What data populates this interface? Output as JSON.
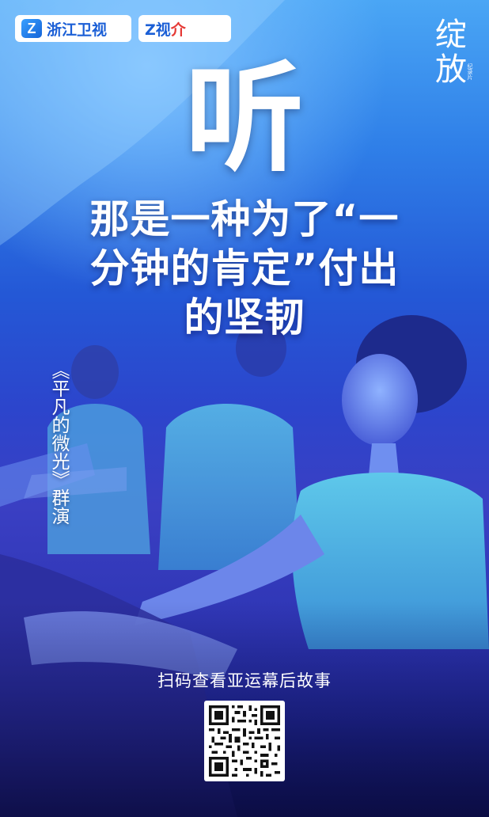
{
  "logos": {
    "channel_mark": "Z",
    "channel_name": "浙江卫视",
    "app_mark": "Z",
    "app_name_main": "Z视",
    "app_name_accent": "介"
  },
  "brand": {
    "title_top": "绽",
    "title_bottom": "放",
    "subtitle": "纪录片"
  },
  "big_char": "听",
  "headline": {
    "line1": "那是一种为了“一",
    "line2": "分钟的肯定”付出",
    "line3": "的坚韧"
  },
  "caption": "《平凡的微光》群演",
  "scan_text": "扫码查看亚运幕后故事",
  "qr_icon": "qr-code-icon"
}
